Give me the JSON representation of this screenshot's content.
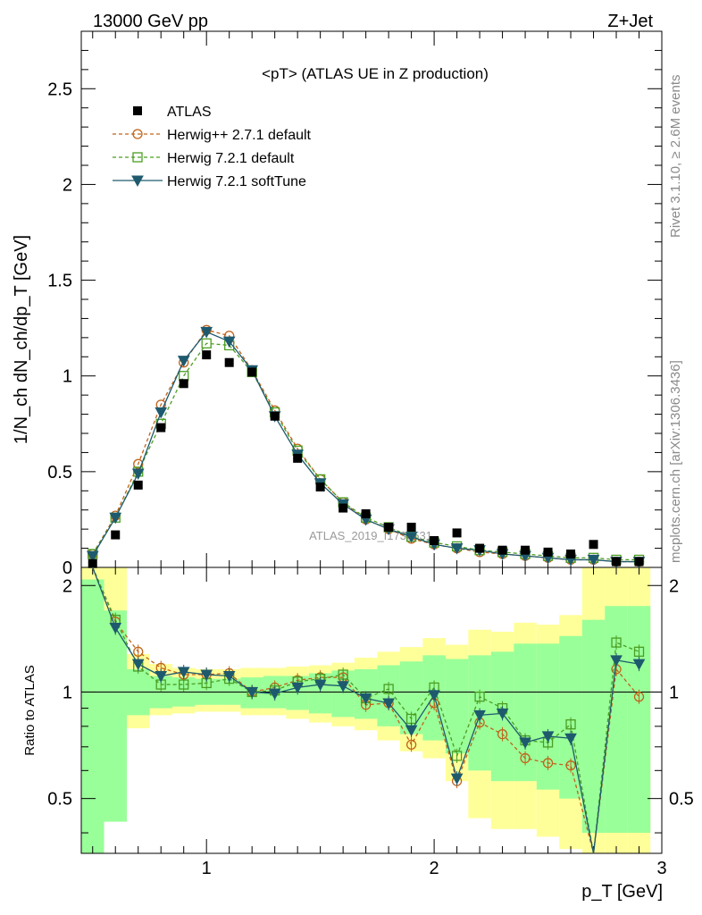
{
  "header": {
    "left": "13000 GeV pp",
    "right": "Z+Jet"
  },
  "side": {
    "rivet": "Rivet 3.1.10, ≥ 2.6M events",
    "mcplots": "mcplots.cern.ch [arXiv:1306.3436]"
  },
  "watermark": "ATLAS_2019_I1736531",
  "axis": {
    "ylabel_main": "1/N_ch dN_ch/dp_T [GeV]",
    "ylabel_ratio": "Ratio to ATLAS",
    "xlabel": "p_T [GeV]"
  },
  "chart_data": {
    "type": "scatter",
    "title": "<pT> (ATLAS UE in Z production)",
    "xlabel": "p_T [GeV]",
    "ylabel": "1/N_ch dN_ch/dp_T [GeV]",
    "xlim": [
      0.45,
      3.0
    ],
    "ylim": [
      0,
      2.8
    ],
    "ratio_ylabel": "Ratio to ATLAS",
    "ratio_ylim": [
      0.35,
      2.25
    ],
    "x_ticks": [
      "1",
      "2",
      "3"
    ],
    "y_ticks": [
      "0",
      "0.5",
      "1",
      "1.5",
      "2",
      "2.5"
    ],
    "ratio_ticks": [
      "0.5",
      "1",
      "2"
    ],
    "legend_position": "top-left",
    "x": [
      0.5,
      0.6,
      0.7,
      0.8,
      0.9,
      1.0,
      1.1,
      1.2,
      1.3,
      1.4,
      1.5,
      1.6,
      1.7,
      1.8,
      1.9,
      2.0,
      2.1,
      2.2,
      2.3,
      2.4,
      2.5,
      2.6,
      2.7,
      2.8,
      2.9
    ],
    "data": {
      "name": "ATLAS",
      "color": "#000000",
      "values": [
        0.02,
        0.17,
        0.43,
        0.73,
        0.96,
        1.11,
        1.07,
        1.02,
        0.79,
        0.57,
        0.42,
        0.31,
        0.28,
        0.21,
        0.21,
        0.14,
        0.18,
        0.1,
        0.09,
        0.09,
        0.08,
        0.07,
        0.12,
        0.03,
        0.03
      ]
    },
    "series": [
      {
        "name": "Herwig++ 2.7.1 default",
        "color": "#c0631a",
        "marker": "circle",
        "dash": "dashed",
        "values": [
          0.07,
          0.27,
          0.54,
          0.85,
          1.07,
          1.24,
          1.21,
          1.03,
          0.82,
          0.62,
          0.46,
          0.34,
          0.25,
          0.2,
          0.15,
          0.12,
          0.1,
          0.08,
          0.07,
          0.06,
          0.05,
          0.04,
          0.04,
          0.03,
          0.03
        ],
        "ratio": [
          2.4,
          1.58,
          1.3,
          1.17,
          1.12,
          1.12,
          1.13,
          1.0,
          1.03,
          1.08,
          1.1,
          1.1,
          0.92,
          0.93,
          0.71,
          0.93,
          0.56,
          0.82,
          0.76,
          0.65,
          0.63,
          0.62,
          0.28,
          1.16,
          0.97
        ]
      },
      {
        "name": "Herwig 7.2.1 default",
        "color": "#4b9e23",
        "marker": "square",
        "dash": "dashed",
        "values": [
          0.07,
          0.26,
          0.5,
          0.75,
          1.0,
          1.17,
          1.16,
          1.02,
          0.81,
          0.61,
          0.46,
          0.34,
          0.26,
          0.21,
          0.16,
          0.13,
          0.11,
          0.09,
          0.08,
          0.07,
          0.06,
          0.05,
          0.05,
          0.04,
          0.04
        ],
        "ratio": [
          2.4,
          1.6,
          1.18,
          1.05,
          1.05,
          1.06,
          1.09,
          1.0,
          1.01,
          1.07,
          1.09,
          1.12,
          0.96,
          1.02,
          0.84,
          1.03,
          0.66,
          0.97,
          0.9,
          0.73,
          0.72,
          0.81,
          0.28,
          1.38,
          1.3
        ]
      },
      {
        "name": "Herwig 7.2.1 softTune",
        "color": "#1e5a6e",
        "marker": "triangle",
        "dash": "solid",
        "values": [
          0.06,
          0.26,
          0.49,
          0.81,
          1.08,
          1.23,
          1.18,
          1.03,
          0.79,
          0.59,
          0.44,
          0.33,
          0.25,
          0.2,
          0.16,
          0.12,
          0.1,
          0.09,
          0.07,
          0.06,
          0.05,
          0.04,
          0.04,
          0.03,
          0.03
        ],
        "ratio": [
          2.3,
          1.52,
          1.2,
          1.11,
          1.14,
          1.12,
          1.11,
          1.0,
          0.99,
          1.03,
          1.05,
          1.04,
          0.96,
          0.93,
          0.78,
          0.98,
          0.57,
          0.86,
          0.87,
          0.72,
          0.75,
          0.74,
          0.27,
          1.23,
          1.2
        ]
      }
    ],
    "ratio_band_yellow": [
      [
        0.2,
        2.4
      ],
      [
        0.6,
        2.4
      ],
      [
        0.79,
        1.28
      ],
      [
        0.86,
        1.2
      ],
      [
        0.87,
        1.17
      ],
      [
        0.88,
        1.16
      ],
      [
        0.88,
        1.16
      ],
      [
        0.86,
        1.17
      ],
      [
        0.86,
        1.17
      ],
      [
        0.84,
        1.18
      ],
      [
        0.82,
        1.19
      ],
      [
        0.8,
        1.21
      ],
      [
        0.78,
        1.25
      ],
      [
        0.73,
        1.3
      ],
      [
        0.68,
        1.34
      ],
      [
        0.65,
        1.42
      ],
      [
        0.56,
        1.36
      ],
      [
        0.44,
        1.5
      ],
      [
        0.41,
        1.48
      ],
      [
        0.41,
        1.57
      ],
      [
        0.39,
        1.55
      ],
      [
        0.36,
        1.65
      ],
      [
        0.25,
        2.3
      ],
      [
        0.25,
        2.4
      ],
      [
        0.25,
        2.4
      ]
    ],
    "ratio_band_green": [
      [
        0.2,
        2.08
      ],
      [
        0.43,
        1.7
      ],
      [
        0.86,
        1.16
      ],
      [
        0.9,
        1.11
      ],
      [
        0.91,
        1.1
      ],
      [
        0.92,
        1.09
      ],
      [
        0.92,
        1.09
      ],
      [
        0.9,
        1.1
      ],
      [
        0.9,
        1.11
      ],
      [
        0.89,
        1.11
      ],
      [
        0.87,
        1.13
      ],
      [
        0.85,
        1.15
      ],
      [
        0.84,
        1.16
      ],
      [
        0.8,
        1.19
      ],
      [
        0.76,
        1.22
      ],
      [
        0.73,
        1.27
      ],
      [
        0.67,
        1.24
      ],
      [
        0.6,
        1.27
      ],
      [
        0.56,
        1.3
      ],
      [
        0.56,
        1.37
      ],
      [
        0.53,
        1.37
      ],
      [
        0.5,
        1.44
      ],
      [
        0.4,
        1.6
      ],
      [
        0.4,
        1.75
      ],
      [
        0.4,
        1.75
      ]
    ]
  }
}
